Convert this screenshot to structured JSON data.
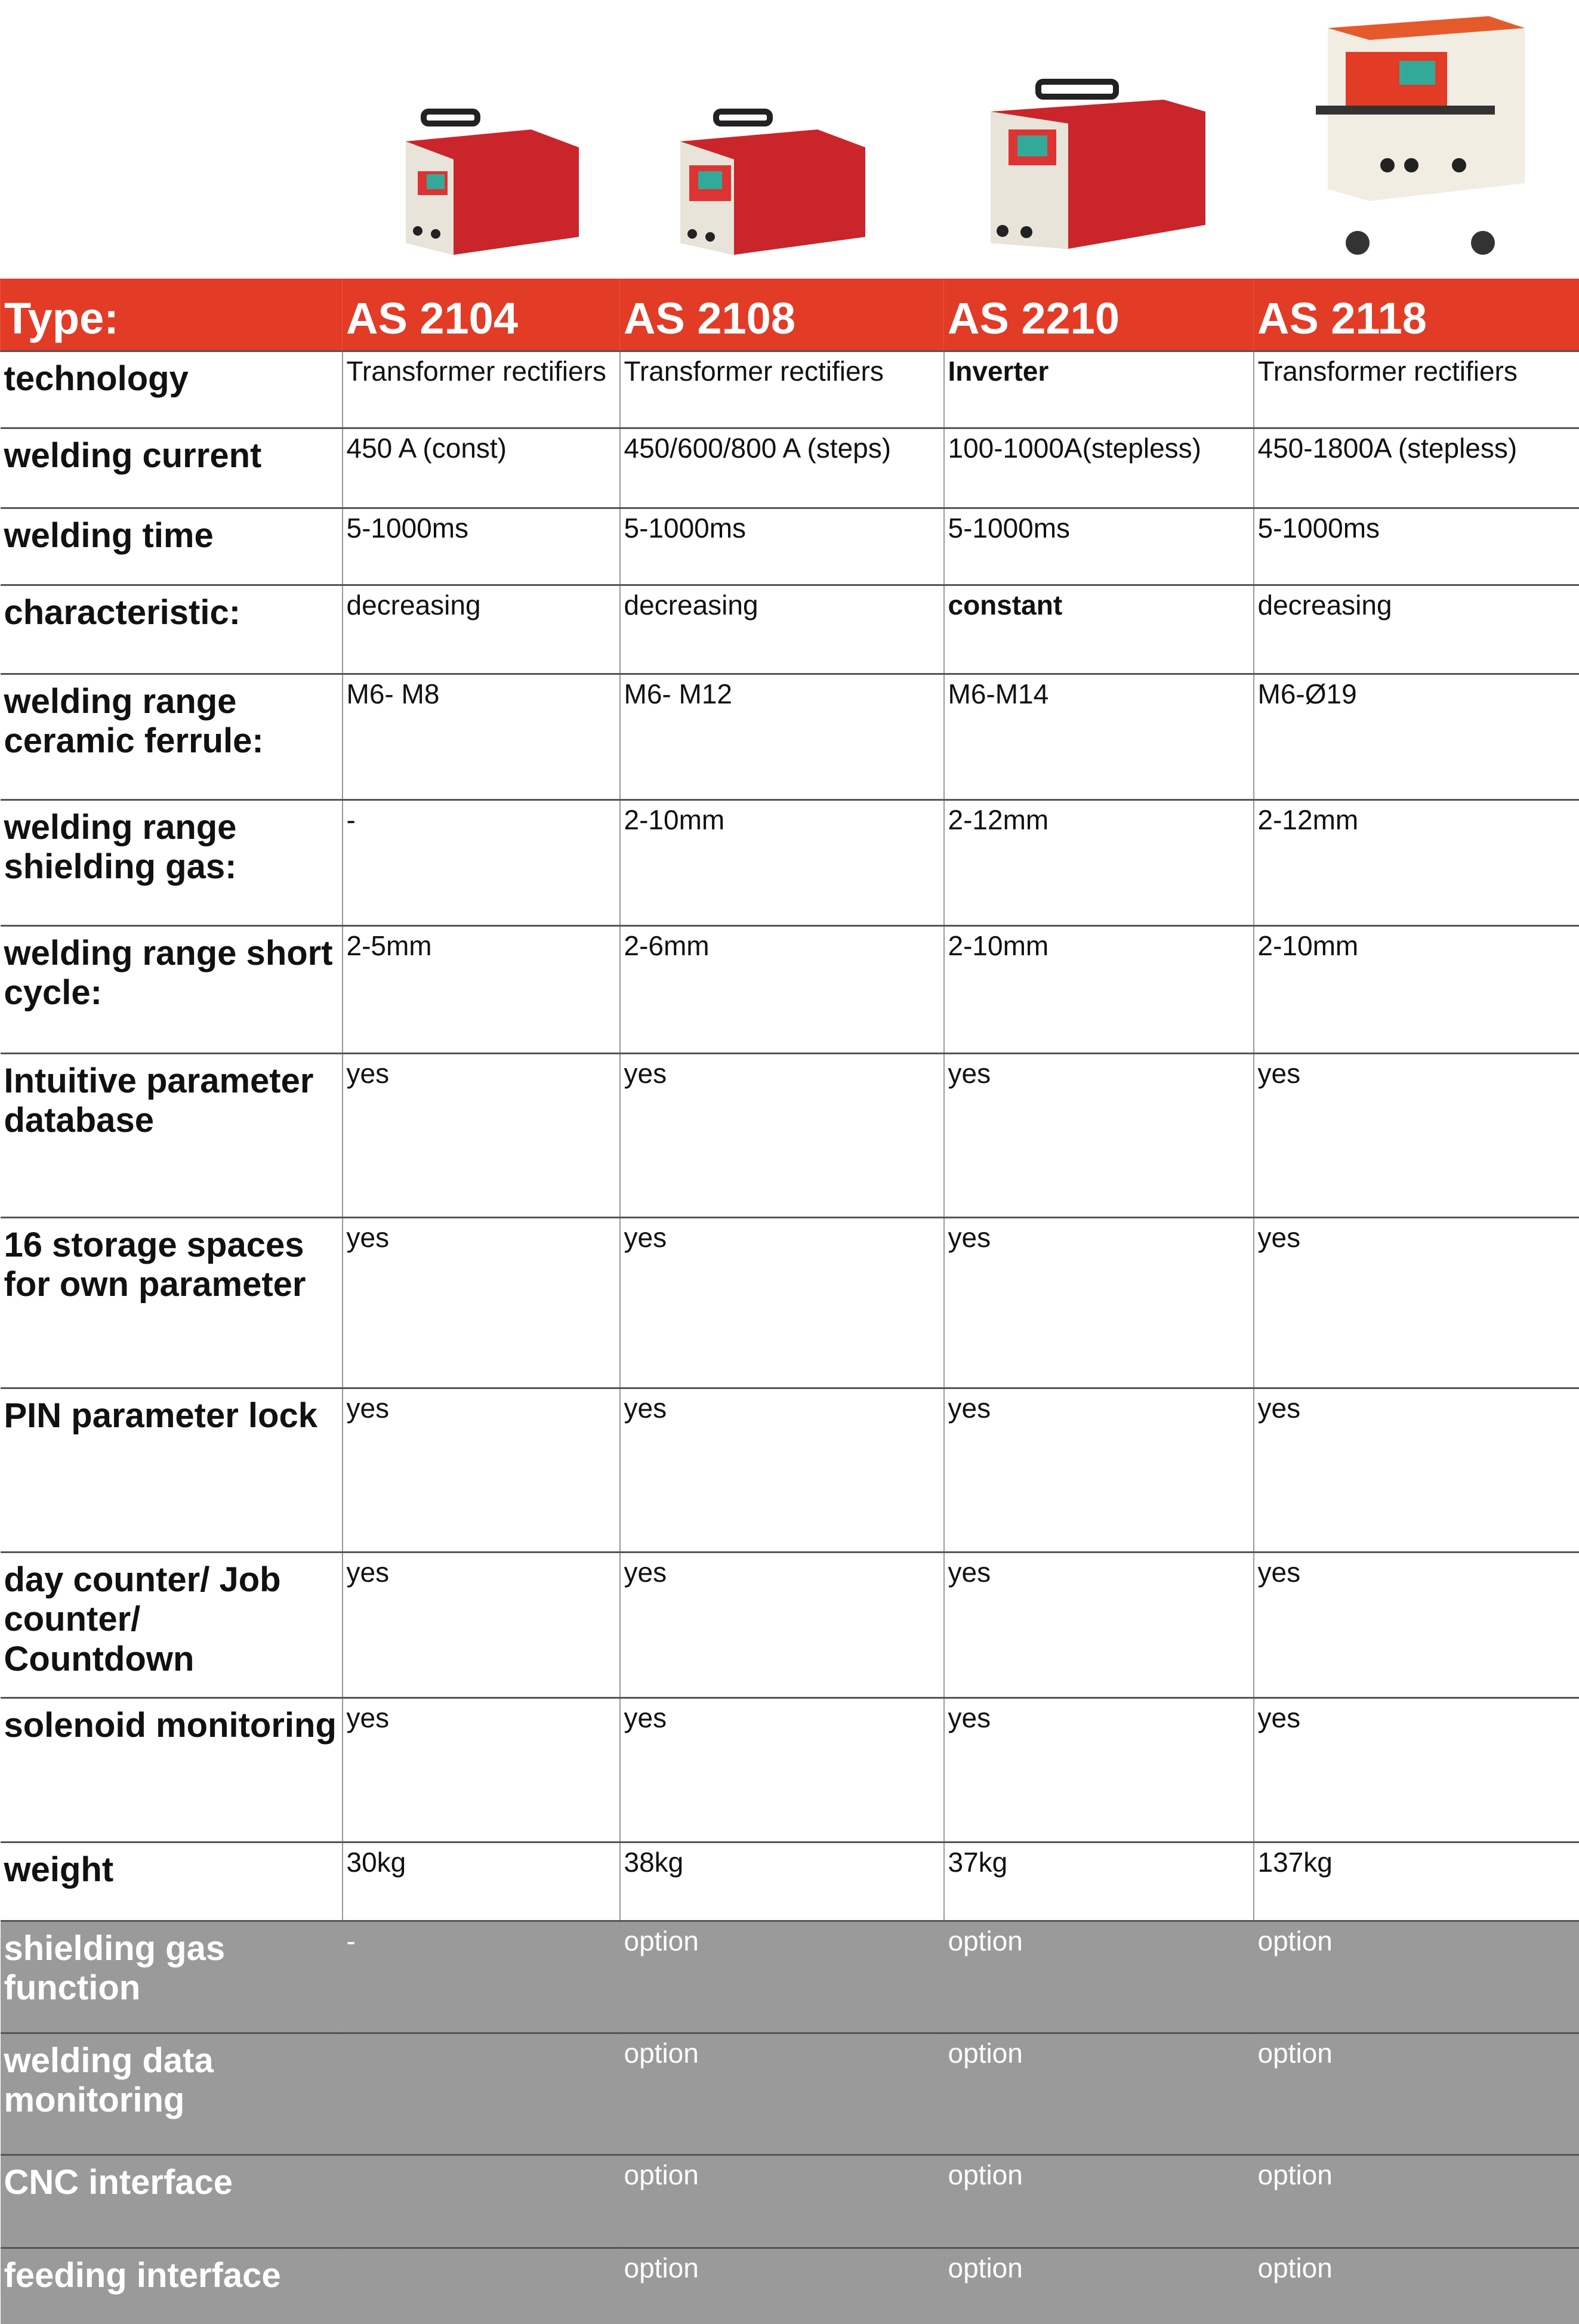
{
  "header": {
    "label": "Type:",
    "models": [
      "AS 2104",
      "AS 2108",
      "AS 2210",
      "AS 2118"
    ]
  },
  "colors": {
    "header": "#e23b26",
    "option_rows": "#9a9a9a",
    "machine_red": "#d32a2a"
  },
  "rows": [
    {
      "label": "technology",
      "values": [
        "Transformer rectifiers",
        "Transformer rectifiers",
        "Inverter",
        "Transformer rectifiers"
      ],
      "bold": [
        2
      ]
    },
    {
      "label": "welding current",
      "values": [
        "450 A (const)",
        "450/600/800 A (steps)",
        "100-1000A(stepless)",
        "450-1800A (stepless)"
      ]
    },
    {
      "label": "welding time",
      "values": [
        "5-1000ms",
        "5-1000ms",
        "5-1000ms",
        "5-1000ms"
      ]
    },
    {
      "label": "characteristic:",
      "values": [
        "decreasing",
        "decreasing",
        "constant",
        "decreasing"
      ],
      "bold": [
        2
      ]
    },
    {
      "label": "welding range ceramic ferrule:",
      "values": [
        "M6- M8",
        "M6- M12",
        "M6-M14",
        "M6-Ø19"
      ]
    },
    {
      "label": "welding range shielding gas:",
      "values": [
        "-",
        "2-10mm",
        "2-12mm",
        "2-12mm"
      ]
    },
    {
      "label": "welding range short cycle:",
      "values": [
        "2-5mm",
        "2-6mm",
        "2-10mm",
        "2-10mm"
      ]
    },
    {
      "label": "Intuitive parameter database",
      "values": [
        "yes",
        "yes",
        "yes",
        "yes"
      ]
    },
    {
      "label": "16 storage spaces for own parameter",
      "values": [
        "yes",
        "yes",
        "yes",
        "yes"
      ]
    },
    {
      "label": "PIN parameter lock",
      "values": [
        "yes",
        "yes",
        "yes",
        "yes"
      ]
    },
    {
      "label": "day counter/ Job counter/ Countdown",
      "values": [
        "yes",
        "yes",
        "yes",
        "yes"
      ]
    },
    {
      "label": "solenoid monitoring",
      "values": [
        "yes",
        "yes",
        "yes",
        "yes"
      ]
    },
    {
      "label": "weight",
      "values": [
        "30kg",
        "38kg",
        "37kg",
        "137kg"
      ]
    },
    {
      "label": "shielding gas function",
      "values": [
        "-",
        "option",
        "option",
        "option"
      ],
      "gray": true
    },
    {
      "label": "welding data monitoring",
      "values": [
        "",
        "option",
        "option",
        "option"
      ],
      "gray": true
    },
    {
      "label": "CNC interface",
      "values": [
        "",
        "option",
        "option",
        "option"
      ],
      "gray": true
    },
    {
      "label": "feeding interface",
      "values": [
        "",
        "option",
        "option",
        "option"
      ],
      "gray": true
    }
  ]
}
